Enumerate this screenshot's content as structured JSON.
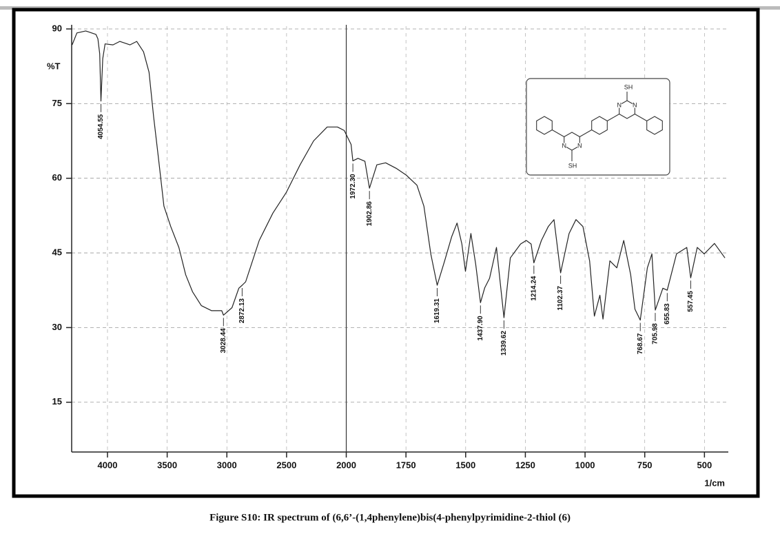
{
  "chart_data": {
    "type": "line",
    "caption": "Figure S10: IR spectrum of (6,6’-(1,4phenylene)bis(4-phenylpyrimidine-2-thiol (6)",
    "ylabel": "%T",
    "xlabel": "1/cm",
    "xlim": [
      4300,
      400
    ],
    "x_scale_break": 2000,
    "ylim": [
      5,
      90
    ],
    "xticks": [
      4000,
      3500,
      3000,
      2500,
      2000,
      1750,
      1500,
      1250,
      1000,
      750,
      500
    ],
    "yticks": [
      90,
      75,
      60,
      45,
      30,
      15
    ],
    "grid": true,
    "series": [
      {
        "color": "#222222",
        "x": [
          4296,
          4256,
          4182,
          4097,
          4080,
          4065,
          4054.55,
          4040,
          4020,
          3954,
          3897,
          3812,
          3755,
          3698,
          3652,
          3613,
          3573,
          3527,
          3470,
          3402,
          3345,
          3288,
          3214,
          3128,
          3043,
          3028.44,
          2957,
          2900,
          2872.13,
          2843,
          2729,
          2615,
          2501,
          2387,
          2274,
          2160,
          2074,
          2017,
          1980,
          1972.3,
          1951,
          1922,
          1902.86,
          1872,
          1835,
          1791,
          1748,
          1704,
          1675,
          1646,
          1619.31,
          1588,
          1559,
          1536,
          1516,
          1501,
          1478,
          1458,
          1437.9,
          1420,
          1400,
          1371,
          1339.62,
          1313,
          1270,
          1246,
          1226,
          1214.24,
          1183,
          1154,
          1130,
          1102.37,
          1067,
          1038,
          1009,
          981,
          961,
          938,
          925,
          896,
          867,
          838,
          809,
          791,
          768.67,
          739,
          720,
          705.98,
          674,
          655.83,
          617,
          574,
          557.45,
          530,
          501,
          458,
          414
        ],
        "values": [
          86.8,
          89.2,
          89.6,
          88.9,
          88,
          85,
          75.5,
          84,
          87,
          86.8,
          87.5,
          86.8,
          87.5,
          85.4,
          81.3,
          72.3,
          64,
          54.4,
          50.3,
          46.1,
          40.6,
          37.2,
          34.4,
          33.4,
          33.4,
          32.5,
          34,
          37.9,
          38.5,
          39.2,
          47.5,
          53,
          57.2,
          62.7,
          67.5,
          70.3,
          70.3,
          69.6,
          66.8,
          63.5,
          64,
          63.4,
          58,
          62.7,
          63.1,
          62,
          60.6,
          58.6,
          54.4,
          44.8,
          38.5,
          43.4,
          48.2,
          51,
          46.8,
          41.3,
          48.9,
          42.7,
          35,
          38,
          39.9,
          46.1,
          32,
          44,
          46.8,
          47.5,
          46.8,
          43,
          47.5,
          50.3,
          51.7,
          41,
          48.9,
          51.7,
          50.3,
          43.4,
          32.3,
          36.5,
          31.7,
          43.4,
          42,
          47.5,
          40.6,
          33.7,
          31.5,
          42,
          44.8,
          33.5,
          37.9,
          37.5,
          44.8,
          46.1,
          40,
          46.1,
          44.8,
          46.9,
          44
        ]
      }
    ],
    "peaks": [
      {
        "value": 4054.55,
        "label": "4054.55"
      },
      {
        "value": 3028.44,
        "label": "3028.44"
      },
      {
        "value": 2872.13,
        "label": "2872.13"
      },
      {
        "value": 1972.3,
        "label": "1972.30"
      },
      {
        "value": 1902.86,
        "label": "1902.86"
      },
      {
        "value": 1619.31,
        "label": "1619.31"
      },
      {
        "value": 1437.9,
        "label": "1437.90"
      },
      {
        "value": 1339.62,
        "label": "1339.62"
      },
      {
        "value": 1214.24,
        "label": "1214.24"
      },
      {
        "value": 1102.37,
        "label": "1102.37"
      },
      {
        "value": 768.67,
        "label": "768.67"
      },
      {
        "value": 705.98,
        "label": "705.98"
      },
      {
        "value": 655.83,
        "label": "655.83"
      },
      {
        "value": 557.45,
        "label": "557.45"
      }
    ]
  },
  "structure": {
    "labels": [
      "SH",
      "N",
      "N",
      "SH",
      "N",
      "N"
    ]
  }
}
